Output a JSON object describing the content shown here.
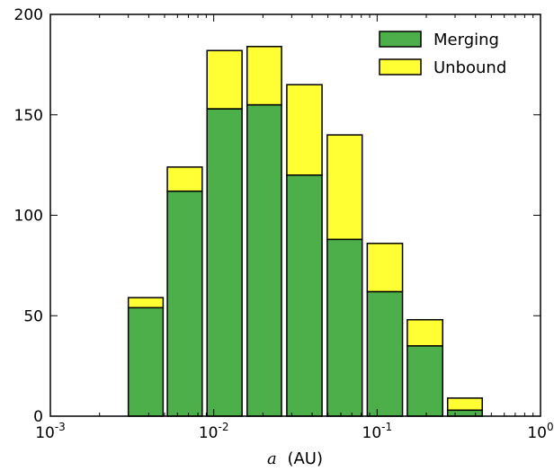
{
  "chart_data": {
    "type": "bar",
    "stacked": true,
    "x_scale": "log",
    "xlabel_var": "a",
    "xlabel_unit": "(AU)",
    "ylabel": "",
    "title": "",
    "xlim": [
      0.001,
      1
    ],
    "ylim": [
      0,
      200
    ],
    "x_ticks": [
      {
        "value": 0.001,
        "base": "10",
        "exp": "-3"
      },
      {
        "value": 0.01,
        "base": "10",
        "exp": "-2"
      },
      {
        "value": 0.1,
        "base": "10",
        "exp": "-1"
      },
      {
        "value": 1,
        "base": "10",
        "exp": "0"
      }
    ],
    "y_ticks": [
      0,
      50,
      100,
      150,
      200
    ],
    "bins": [
      {
        "left": 0.003,
        "right": 0.0049
      },
      {
        "left": 0.0052,
        "right": 0.0085
      },
      {
        "left": 0.0091,
        "right": 0.0149
      },
      {
        "left": 0.016,
        "right": 0.026
      },
      {
        "left": 0.028,
        "right": 0.046
      },
      {
        "left": 0.0495,
        "right": 0.081
      },
      {
        "left": 0.087,
        "right": 0.143
      },
      {
        "left": 0.153,
        "right": 0.252
      },
      {
        "left": 0.27,
        "right": 0.44
      }
    ],
    "series": [
      {
        "name": "Merging",
        "color": "#4daf4a",
        "values": [
          54,
          112,
          153,
          155,
          120,
          88,
          62,
          35,
          3
        ]
      },
      {
        "name": "Unbound",
        "color": "#ffff33",
        "values": [
          5,
          12,
          29,
          29,
          45,
          52,
          24,
          13,
          6
        ]
      }
    ],
    "legend_position": "top-right",
    "grid": false
  }
}
